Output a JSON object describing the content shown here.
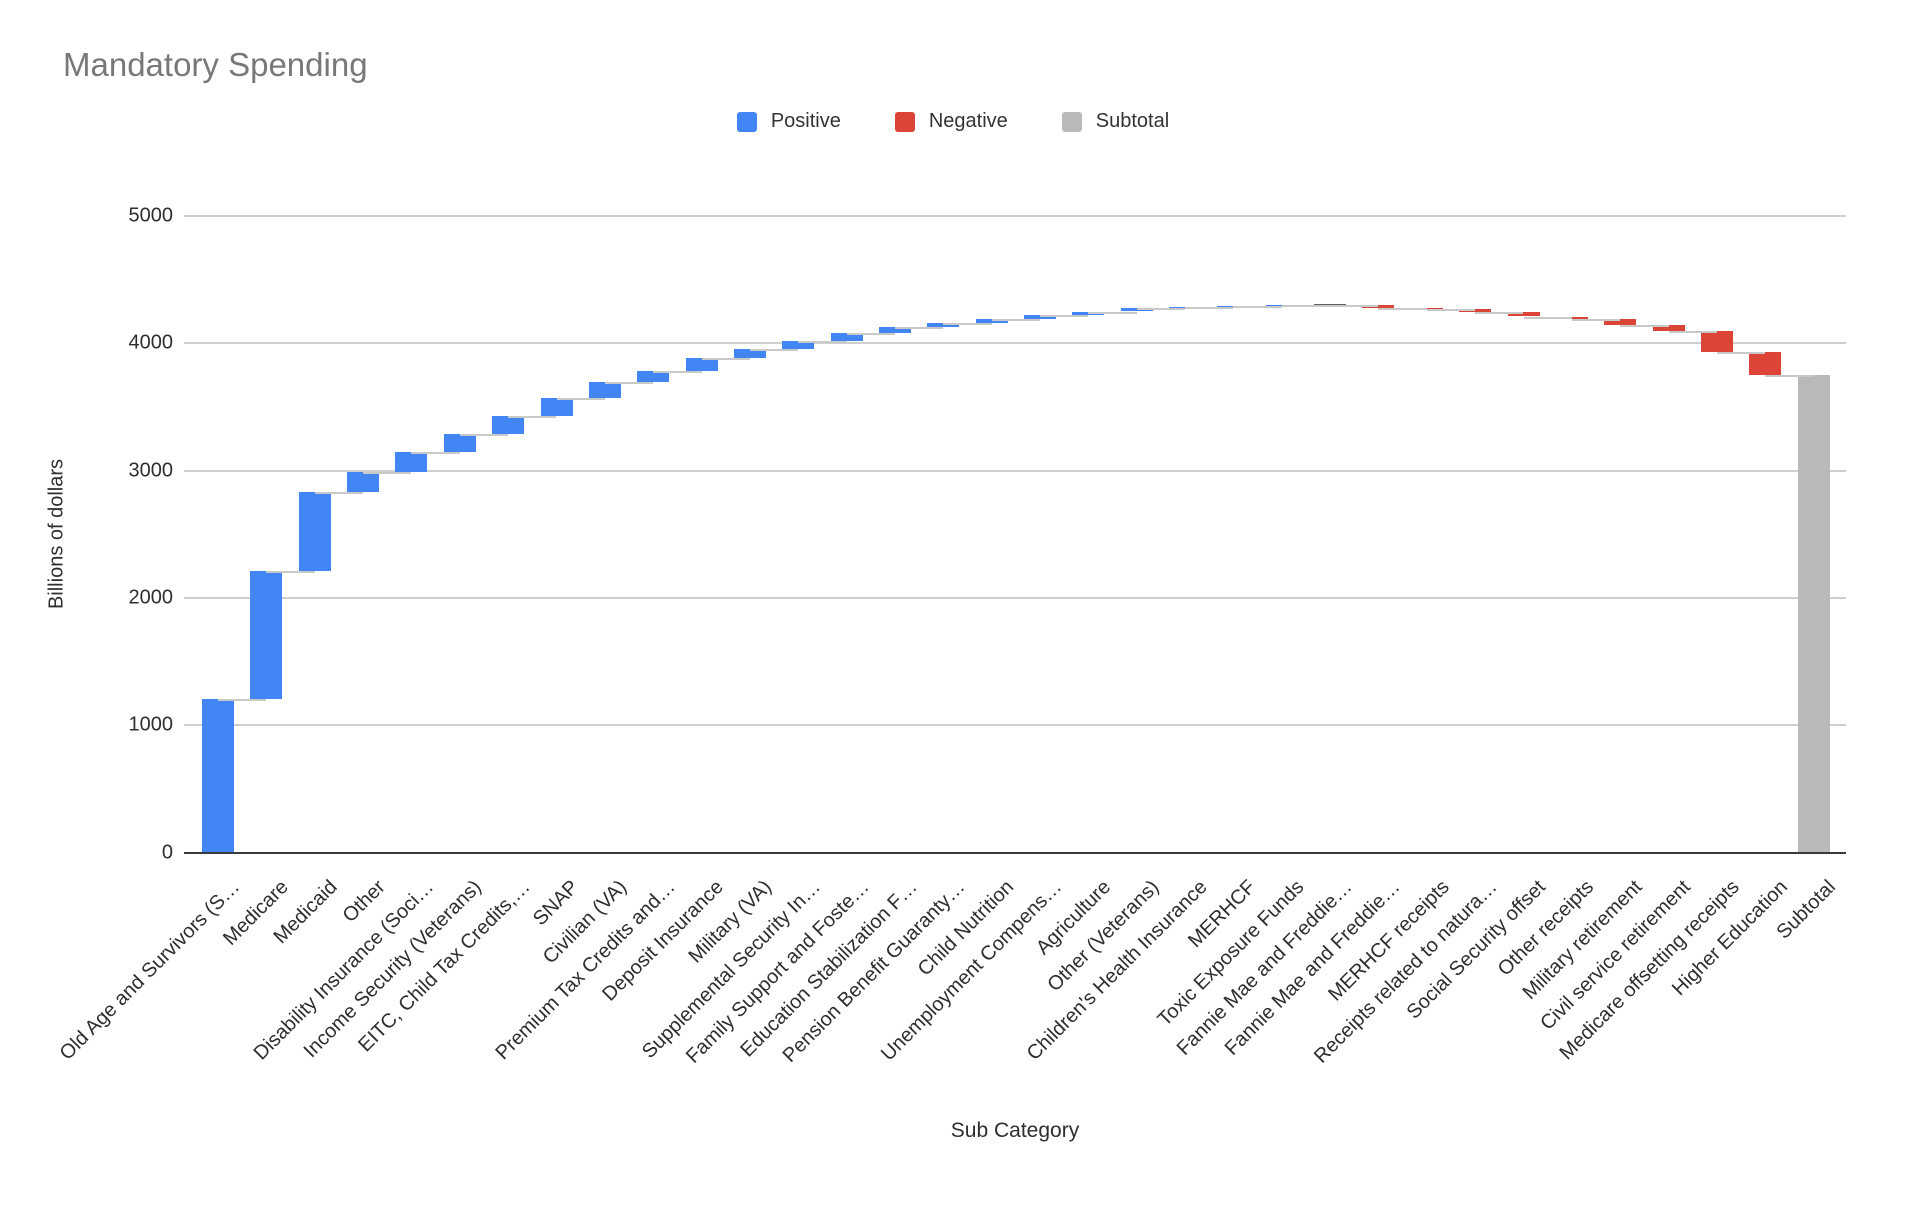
{
  "title": "Mandatory Spending",
  "legend": {
    "positive_label": "Positive",
    "negative_label": "Negative",
    "subtotal_label": "Subtotal"
  },
  "colors": {
    "positive": "#4285F4",
    "negative": "#DB4437",
    "subtotal": "#B9B9B9",
    "zero_bar": "#616161",
    "connector": "#C9C9C9",
    "gridline": "#CFCFCF",
    "axis_line": "#3A3A3A",
    "title_text": "#787878",
    "tick_text": "#2E2E2E"
  },
  "chart_data": {
    "type": "bar",
    "variant": "waterfall",
    "title": "Mandatory Spending",
    "xlabel": "Sub Category",
    "ylabel": "Billions of dollars",
    "ylim": [
      0,
      5000
    ],
    "yticks": [
      0,
      1000,
      2000,
      3000,
      4000,
      5000
    ],
    "grid": true,
    "legend_position": "top",
    "legend_entries": [
      "Positive",
      "Negative",
      "Subtotal"
    ],
    "last_is_subtotal": true,
    "categories": [
      "Old Age and Survivors (S…",
      "Medicare",
      "Medicaid",
      "Other",
      "Disability Insurance (Soci…",
      "Income Security (Veterans)",
      "EITC, Child Tax Credits,…",
      "SNAP",
      "Civilian (VA)",
      "Premium Tax Credits and…",
      "Deposit Insurance",
      "Military (VA)",
      "Supplemental Security In…",
      "Family Support and Foste…",
      "Education Stabilization F…",
      "Pension Benefit Guaranty…",
      "Child Nutrition",
      "Unemployment Compens…",
      "Agriculture",
      "Other (Veterans)",
      "Children's Health Insurance",
      "MERHCF",
      "Toxic Exposure Funds",
      "Fannie Mae and Freddie…",
      "Fannie Mae and Freddie…",
      "MERHCF receipts",
      "Receipts related to natura…",
      "Social Security offset",
      "Other receipts",
      "Military retirement",
      "Civil service retirement",
      "Medicare offsetting receipts",
      "Higher Education",
      "Subtotal"
    ],
    "values": [
      1210,
      1000,
      625,
      155,
      155,
      145,
      140,
      140,
      125,
      90,
      100,
      72,
      64,
      62,
      48,
      32,
      25,
      32,
      30,
      24,
      8,
      14,
      3,
      0,
      -20,
      -6,
      -24,
      -38,
      -22,
      -46,
      -44,
      -170,
      -175,
      3754
    ]
  }
}
